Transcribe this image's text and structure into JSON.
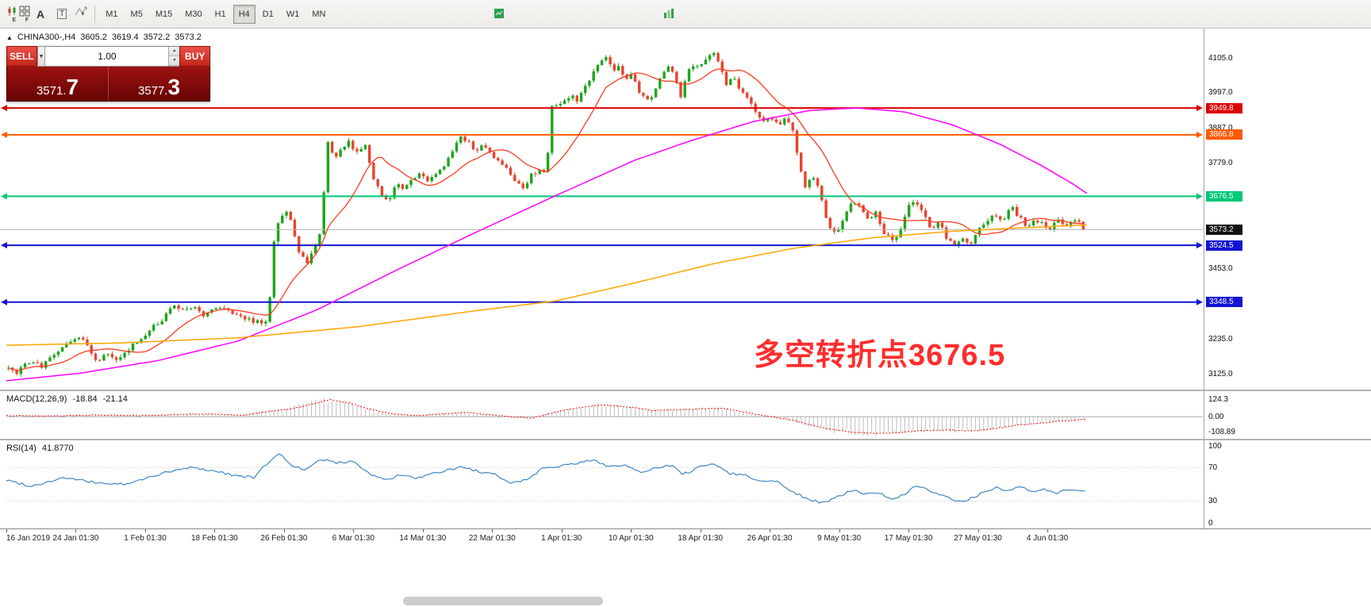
{
  "toolbar": {
    "icons": {
      "indicators_label_e": "E",
      "template_label_f": "F",
      "text_tool": "A",
      "label_tool": "T"
    },
    "timeframes": [
      {
        "label": "M1",
        "active": false
      },
      {
        "label": "M5",
        "active": false
      },
      {
        "label": "M15",
        "active": false
      },
      {
        "label": "M30",
        "active": false
      },
      {
        "label": "H1",
        "active": false
      },
      {
        "label": "H4",
        "active": true
      },
      {
        "label": "D1",
        "active": false
      },
      {
        "label": "W1",
        "active": false
      },
      {
        "label": "MN",
        "active": false
      }
    ]
  },
  "symbol_info": {
    "symbol": "CHINA300-,H4",
    "open": "3605.2",
    "high": "3619.4",
    "low": "3572.2",
    "close": "3573.2"
  },
  "trade_panel": {
    "sell_label": "SELL",
    "buy_label": "BUY",
    "volume": "1.00",
    "sell_price_small": "3571.",
    "sell_price_big": "7",
    "buy_price_small": "3577.",
    "buy_price_big": "3"
  },
  "annotation": {
    "text": "多空转折点3676.5",
    "color": "#ff2d2d"
  },
  "macd": {
    "name": "MACD(12,26,9)",
    "value_main": "-18.84",
    "value_signal": "-21.14",
    "axis": [
      {
        "label": "124.3",
        "value": 124.3
      },
      {
        "label": "0.00",
        "value": 0
      },
      {
        "label": "-108.89",
        "value": -108.89
      }
    ]
  },
  "rsi": {
    "name": "RSI(14)",
    "value": "41.8770",
    "axis": [
      {
        "label": "100",
        "value": 100
      },
      {
        "label": "70",
        "value": 70
      },
      {
        "label": "30",
        "value": 30
      },
      {
        "label": "0",
        "value": 0
      }
    ],
    "levels": [
      70,
      30
    ]
  },
  "time_axis": [
    "16 Jan 2019",
    "24 Jan 01:30",
    "1 Feb 01:30",
    "18 Feb 01:30",
    "26 Feb 01:30",
    "6 Mar 01:30",
    "14 Mar 01:30",
    "22 Mar 01:30",
    "1 Apr 01:30",
    "10 Apr 01:30",
    "18 Apr 01:30",
    "26 Apr 01:30",
    "9 May 01:30",
    "17 May 01:30",
    "27 May 01:30",
    "4 Jun 01:30"
  ],
  "chart_data": {
    "type": "candlestick",
    "symbol": "CHINA300-",
    "timeframe": "H4",
    "title": "CHINA300- H4 candlestick chart with MA lines, MACD and RSI subwindows",
    "price_axis": {
      "min": 3085,
      "max": 4186,
      "ticks": [
        {
          "label": "4105.0",
          "price": 4105
        },
        {
          "label": "3997.0",
          "price": 3997
        },
        {
          "label": "3887.0",
          "price": 3887
        },
        {
          "label": "3779.0",
          "price": 3779
        },
        {
          "label": "3453.0",
          "price": 3453
        },
        {
          "label": "3235.0",
          "price": 3235
        },
        {
          "label": "3125.0",
          "price": 3125
        }
      ]
    },
    "current_price": {
      "label": "3573.2",
      "price": 3573.2
    },
    "last_close": 3573.2,
    "levels": [
      {
        "label": "3949.8",
        "price": 3949.8,
        "color": "#dd0000"
      },
      {
        "label": "3866.8",
        "price": 3866.8,
        "color": "#ff5a00"
      },
      {
        "label": "3676.5",
        "price": 3676.5,
        "color": "#00c776"
      },
      {
        "label": "3524.5",
        "price": 3524.5,
        "color": "#1414d2"
      },
      {
        "label": "3348.5",
        "price": 3348.5,
        "color": "#1414d2"
      }
    ],
    "up_color": "#1ca51c",
    "down_color": "#e8432d",
    "ma_fast_color": "#ff3b1f",
    "ma_mid_color": "#ff00ff",
    "ma_slow_color": "#ffa500",
    "macd_signal_color": "#ff0000",
    "macd_hist_color": "#bdbdbd",
    "rsi_color": "#3e86c6",
    "close_waypoints": [
      [
        8,
        3155
      ],
      [
        22,
        3130
      ],
      [
        38,
        3168
      ],
      [
        52,
        3150
      ],
      [
        66,
        3185
      ],
      [
        80,
        3210
      ],
      [
        95,
        3240
      ],
      [
        108,
        3225
      ],
      [
        120,
        3165
      ],
      [
        134,
        3185
      ],
      [
        148,
        3162
      ],
      [
        162,
        3200
      ],
      [
        178,
        3240
      ],
      [
        192,
        3268
      ],
      [
        206,
        3300
      ],
      [
        220,
        3340
      ],
      [
        232,
        3318
      ],
      [
        244,
        3342
      ],
      [
        256,
        3305
      ],
      [
        268,
        3330
      ],
      [
        280,
        3340
      ],
      [
        292,
        3320
      ],
      [
        304,
        3302
      ],
      [
        318,
        3290
      ],
      [
        330,
        3282
      ],
      [
        338,
        3300
      ],
      [
        346,
        3560
      ],
      [
        354,
        3618
      ],
      [
        362,
        3635
      ],
      [
        370,
        3572
      ],
      [
        378,
        3498
      ],
      [
        388,
        3470
      ],
      [
        398,
        3525
      ],
      [
        406,
        3590
      ],
      [
        412,
        3862
      ],
      [
        420,
        3795
      ],
      [
        430,
        3818
      ],
      [
        440,
        3845
      ],
      [
        450,
        3812
      ],
      [
        460,
        3838
      ],
      [
        470,
        3740
      ],
      [
        480,
        3682
      ],
      [
        490,
        3660
      ],
      [
        500,
        3722
      ],
      [
        510,
        3700
      ],
      [
        520,
        3730
      ],
      [
        530,
        3748
      ],
      [
        540,
        3720
      ],
      [
        550,
        3748
      ],
      [
        560,
        3768
      ],
      [
        570,
        3818
      ],
      [
        580,
        3858
      ],
      [
        590,
        3848
      ],
      [
        600,
        3812
      ],
      [
        610,
        3838
      ],
      [
        620,
        3802
      ],
      [
        630,
        3782
      ],
      [
        640,
        3756
      ],
      [
        650,
        3716
      ],
      [
        660,
        3706
      ],
      [
        670,
        3742
      ],
      [
        680,
        3760
      ],
      [
        688,
        3742
      ],
      [
        696,
        3958
      ],
      [
        704,
        3952
      ],
      [
        712,
        3978
      ],
      [
        720,
        3992
      ],
      [
        728,
        3964
      ],
      [
        736,
        4012
      ],
      [
        744,
        4042
      ],
      [
        754,
        4088
      ],
      [
        764,
        4108
      ],
      [
        772,
        4062
      ],
      [
        780,
        4084
      ],
      [
        788,
        4038
      ],
      [
        796,
        4054
      ],
      [
        804,
        4008
      ],
      [
        814,
        3978
      ],
      [
        824,
        3992
      ],
      [
        832,
        4048
      ],
      [
        842,
        4084
      ],
      [
        850,
        4060
      ],
      [
        857,
        3974
      ],
      [
        865,
        4054
      ],
      [
        874,
        4086
      ],
      [
        882,
        4080
      ],
      [
        892,
        4106
      ],
      [
        900,
        4124
      ],
      [
        908,
        4078
      ],
      [
        916,
        4022
      ],
      [
        924,
        4048
      ],
      [
        932,
        4002
      ],
      [
        940,
        3994
      ],
      [
        950,
        3948
      ],
      [
        960,
        3908
      ],
      [
        970,
        3928
      ],
      [
        980,
        3900
      ],
      [
        990,
        3914
      ],
      [
        999,
        3890
      ],
      [
        1007,
        3768
      ],
      [
        1015,
        3708
      ],
      [
        1024,
        3744
      ],
      [
        1034,
        3682
      ],
      [
        1044,
        3588
      ],
      [
        1054,
        3560
      ],
      [
        1064,
        3614
      ],
      [
        1074,
        3654
      ],
      [
        1084,
        3644
      ],
      [
        1094,
        3600
      ],
      [
        1104,
        3624
      ],
      [
        1114,
        3564
      ],
      [
        1124,
        3540
      ],
      [
        1134,
        3560
      ],
      [
        1144,
        3646
      ],
      [
        1154,
        3664
      ],
      [
        1164,
        3630
      ],
      [
        1174,
        3564
      ],
      [
        1184,
        3594
      ],
      [
        1194,
        3544
      ],
      [
        1204,
        3520
      ],
      [
        1214,
        3544
      ],
      [
        1224,
        3532
      ],
      [
        1234,
        3574
      ],
      [
        1244,
        3604
      ],
      [
        1254,
        3624
      ],
      [
        1264,
        3602
      ],
      [
        1274,
        3644
      ],
      [
        1284,
        3614
      ],
      [
        1294,
        3582
      ],
      [
        1304,
        3604
      ],
      [
        1314,
        3594
      ],
      [
        1324,
        3574
      ],
      [
        1334,
        3604
      ],
      [
        1344,
        3584
      ],
      [
        1354,
        3610
      ],
      [
        1362,
        3590
      ],
      [
        1368,
        3573
      ]
    ],
    "ma_mid_waypoints": [
      [
        8,
        3105
      ],
      [
        100,
        3128
      ],
      [
        200,
        3168
      ],
      [
        300,
        3228
      ],
      [
        400,
        3325
      ],
      [
        500,
        3448
      ],
      [
        600,
        3565
      ],
      [
        700,
        3678
      ],
      [
        800,
        3788
      ],
      [
        870,
        3848
      ],
      [
        950,
        3908
      ],
      [
        1020,
        3942
      ],
      [
        1080,
        3950
      ],
      [
        1140,
        3938
      ],
      [
        1200,
        3898
      ],
      [
        1260,
        3838
      ],
      [
        1310,
        3775
      ],
      [
        1350,
        3718
      ],
      [
        1372,
        3682
      ]
    ],
    "ma_slow_waypoints": [
      [
        8,
        3215
      ],
      [
        150,
        3222
      ],
      [
        300,
        3238
      ],
      [
        450,
        3272
      ],
      [
        600,
        3322
      ],
      [
        700,
        3352
      ],
      [
        800,
        3408
      ],
      [
        900,
        3468
      ],
      [
        1000,
        3515
      ],
      [
        1100,
        3548
      ],
      [
        1200,
        3568
      ],
      [
        1300,
        3580
      ],
      [
        1372,
        3588
      ]
    ],
    "macd_axis": {
      "min": -146,
      "max": 170
    },
    "macd_waypoints": [
      [
        8,
        8
      ],
      [
        60,
        5
      ],
      [
        120,
        12
      ],
      [
        180,
        8
      ],
      [
        240,
        20
      ],
      [
        300,
        10
      ],
      [
        330,
        35
      ],
      [
        360,
        55
      ],
      [
        385,
        85
      ],
      [
        410,
        122
      ],
      [
        435,
        95
      ],
      [
        460,
        55
      ],
      [
        490,
        18
      ],
      [
        520,
        8
      ],
      [
        550,
        18
      ],
      [
        580,
        30
      ],
      [
        610,
        15
      ],
      [
        640,
        -2
      ],
      [
        665,
        -10
      ],
      [
        695,
        35
      ],
      [
        725,
        65
      ],
      [
        755,
        85
      ],
      [
        785,
        70
      ],
      [
        815,
        45
      ],
      [
        845,
        50
      ],
      [
        875,
        55
      ],
      [
        905,
        58
      ],
      [
        935,
        30
      ],
      [
        965,
        0
      ],
      [
        995,
        -25
      ],
      [
        1015,
        -60
      ],
      [
        1040,
        -90
      ],
      [
        1070,
        -112
      ],
      [
        1100,
        -120
      ],
      [
        1130,
        -112
      ],
      [
        1160,
        -98
      ],
      [
        1190,
        -95
      ],
      [
        1220,
        -102
      ],
      [
        1250,
        -82
      ],
      [
        1280,
        -58
      ],
      [
        1310,
        -42
      ],
      [
        1335,
        -30
      ],
      [
        1360,
        -19
      ]
    ],
    "rsi_last": 41.88,
    "rsi_waypoints": [
      [
        8,
        55
      ],
      [
        40,
        48
      ],
      [
        80,
        58
      ],
      [
        120,
        52
      ],
      [
        160,
        50
      ],
      [
        200,
        62
      ],
      [
        240,
        70
      ],
      [
        270,
        66
      ],
      [
        300,
        60
      ],
      [
        320,
        58
      ],
      [
        340,
        78
      ],
      [
        352,
        86
      ],
      [
        366,
        74
      ],
      [
        385,
        66
      ],
      [
        405,
        80
      ],
      [
        425,
        75
      ],
      [
        445,
        78
      ],
      [
        465,
        63
      ],
      [
        485,
        55
      ],
      [
        505,
        61
      ],
      [
        525,
        57
      ],
      [
        545,
        62
      ],
      [
        565,
        67
      ],
      [
        585,
        71
      ],
      [
        605,
        64
      ],
      [
        625,
        61
      ],
      [
        645,
        52
      ],
      [
        665,
        56
      ],
      [
        685,
        70
      ],
      [
        705,
        72
      ],
      [
        725,
        74
      ],
      [
        748,
        79
      ],
      [
        768,
        71
      ],
      [
        788,
        73
      ],
      [
        808,
        63
      ],
      [
        828,
        70
      ],
      [
        848,
        72
      ],
      [
        860,
        61
      ],
      [
        880,
        70
      ],
      [
        900,
        75
      ],
      [
        920,
        63
      ],
      [
        940,
        61
      ],
      [
        958,
        53
      ],
      [
        978,
        55
      ],
      [
        998,
        42
      ],
      [
        1018,
        33
      ],
      [
        1038,
        28
      ],
      [
        1058,
        36
      ],
      [
        1075,
        44
      ],
      [
        1092,
        38
      ],
      [
        1108,
        41
      ],
      [
        1122,
        32
      ],
      [
        1138,
        37
      ],
      [
        1152,
        47
      ],
      [
        1166,
        45
      ],
      [
        1180,
        39
      ],
      [
        1196,
        34
      ],
      [
        1210,
        30
      ],
      [
        1226,
        34
      ],
      [
        1240,
        41
      ],
      [
        1256,
        46
      ],
      [
        1270,
        42
      ],
      [
        1286,
        47
      ],
      [
        1300,
        41
      ],
      [
        1316,
        44
      ],
      [
        1330,
        39
      ],
      [
        1346,
        45
      ],
      [
        1366,
        42
      ]
    ]
  }
}
